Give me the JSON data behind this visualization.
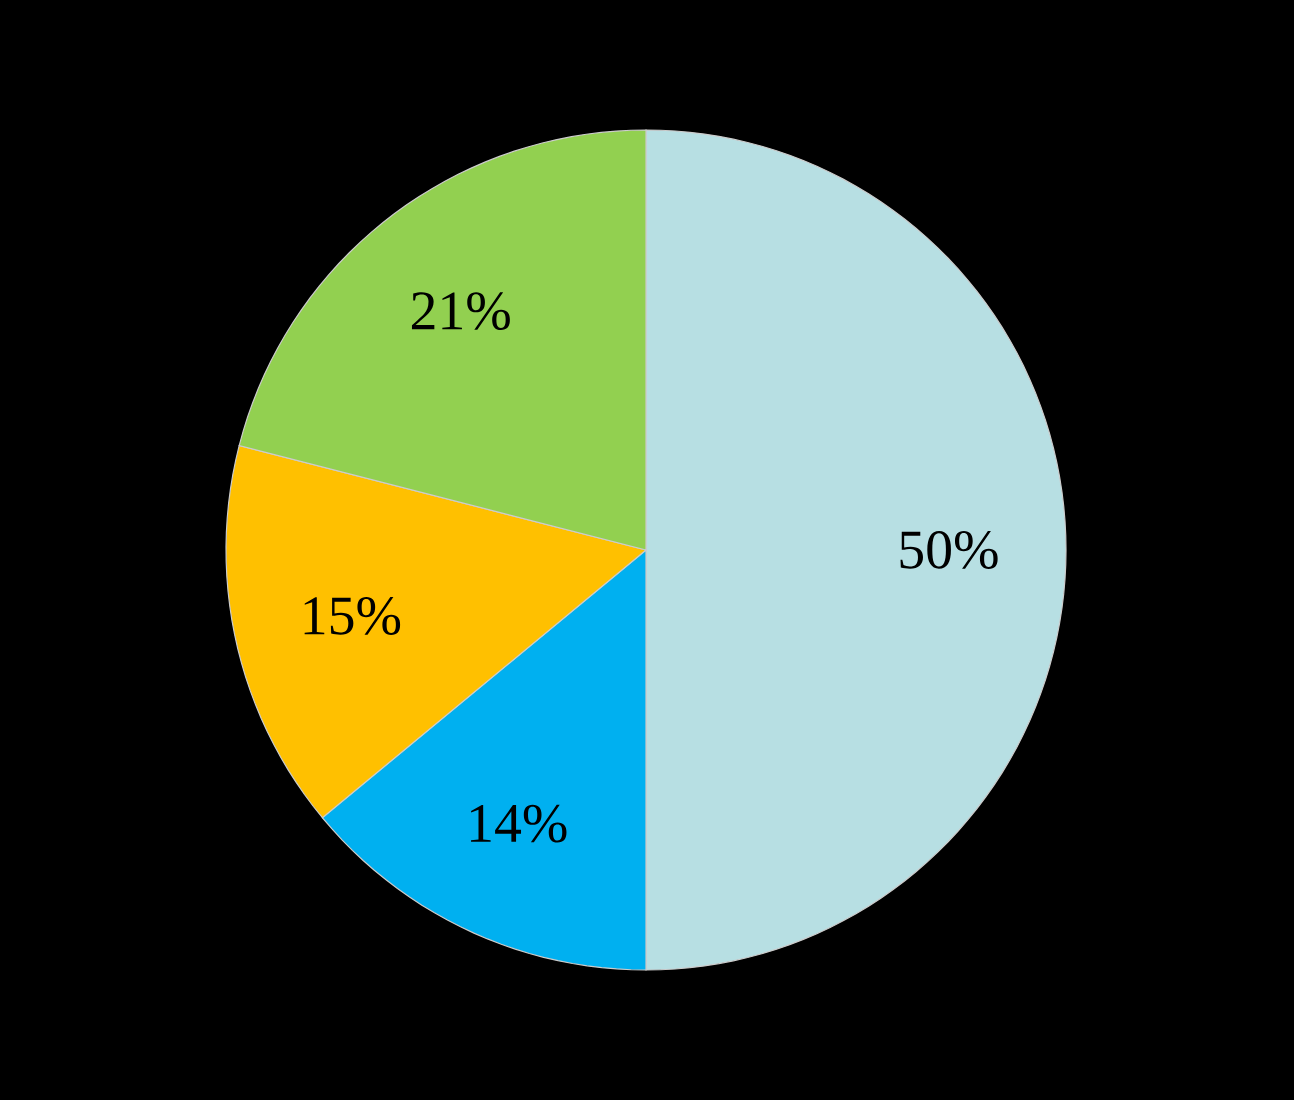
{
  "chart_data": {
    "type": "pie",
    "categories": [
      null,
      null,
      null,
      null
    ],
    "values": [
      50,
      14,
      15,
      21
    ],
    "colors": [
      "#b7dfe3",
      "#00b0f0",
      "#ffc000",
      "#92d050"
    ],
    "value_labels": [
      "50%",
      "14%",
      "15%",
      "21%"
    ]
  }
}
